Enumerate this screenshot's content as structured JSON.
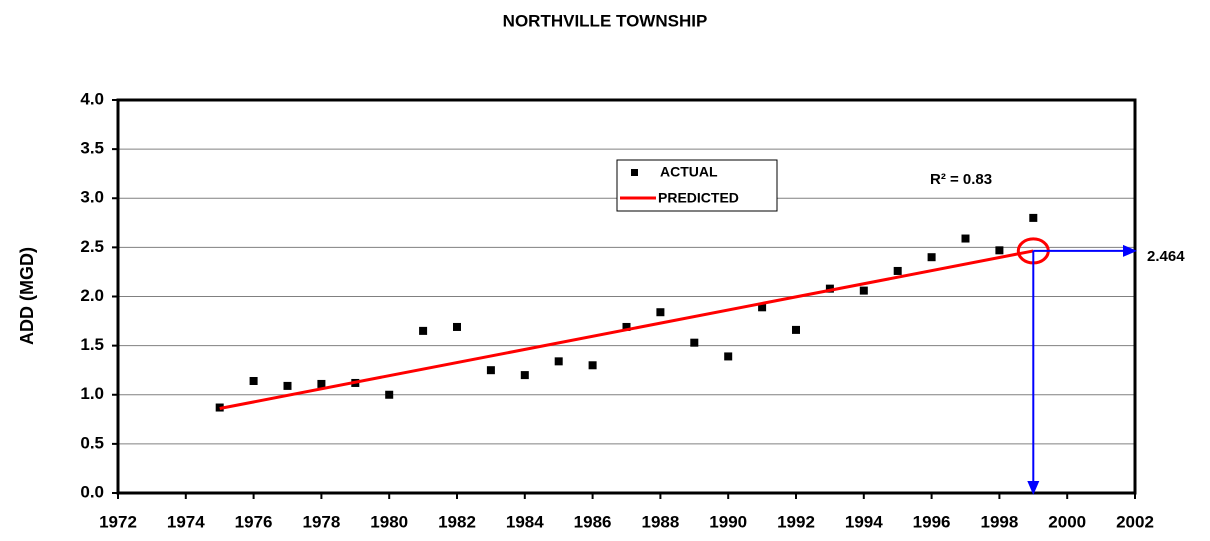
{
  "chart_data": {
    "type": "scatter",
    "title": "NORTHVILLE TOWNSHIP",
    "y_label": "ADD (MGD)",
    "series": [
      {
        "name": "ACTUAL",
        "color": "#000000",
        "x": [
          1975,
          1976,
          1977,
          1978,
          1979,
          1980,
          1981,
          1982,
          1983,
          1984,
          1985,
          1986,
          1987,
          1988,
          1989,
          1990,
          1991,
          1992,
          1993,
          1994,
          1995,
          1996,
          1997,
          1998,
          1999
        ],
        "values": [
          0.87,
          1.14,
          1.09,
          1.11,
          1.12,
          1.0,
          1.65,
          1.69,
          1.25,
          1.2,
          1.34,
          1.3,
          1.69,
          1.84,
          1.53,
          1.39,
          1.89,
          1.66,
          2.08,
          2.06,
          2.26,
          2.4,
          2.59,
          2.47,
          2.8
        ]
      },
      {
        "name": "PREDICTED",
        "color": "#ff0000",
        "x": [
          1975,
          1999
        ],
        "values": [
          0.86,
          2.464
        ]
      }
    ],
    "annotations": [
      {
        "text": "R² = 0.83"
      },
      {
        "x": 1999,
        "y": 2.464,
        "color": "#0000ff"
      }
    ],
    "xlim": [
      1972,
      2002
    ],
    "xticks": [
      1972,
      1974,
      1976,
      1978,
      1980,
      1982,
      1984,
      1986,
      1988,
      1990,
      1992,
      1994,
      1996,
      1998,
      2000,
      2002
    ],
    "ylim": [
      0,
      4
    ],
    "yticks": [
      {
        "value": 0,
        "label": "0.0"
      },
      0.5,
      {
        "value": 1,
        "label": "1.0"
      },
      1.5,
      {
        "value": 2,
        "label": "2.0"
      },
      2.5,
      {
        "value": 3,
        "label": "3.0"
      },
      3.5,
      {
        "value": 4,
        "label": "4.0"
      }
    ],
    "grid": true
  }
}
